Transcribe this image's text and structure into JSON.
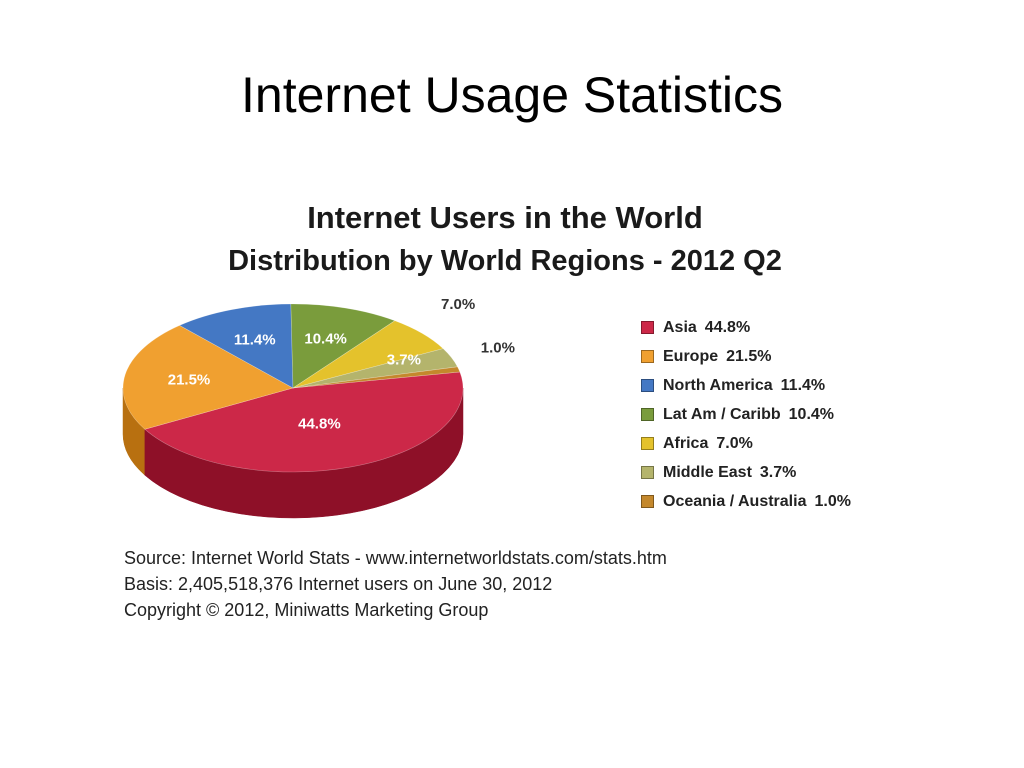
{
  "slide": {
    "title": "Internet Usage Statistics"
  },
  "chart_data": {
    "type": "pie",
    "title": "Internet Users in the World",
    "subtitle": "Distribution by World Regions - 2012 Q2",
    "unit": "%",
    "slices": [
      {
        "label": "Asia",
        "value": 44.8,
        "value_label": "44.8%",
        "color": "#cc2848",
        "side_color": "#8e1028"
      },
      {
        "label": "Europe",
        "value": 21.5,
        "value_label": "21.5%",
        "color": "#f0a030",
        "side_color": "#b87010"
      },
      {
        "label": "North America",
        "value": 11.4,
        "value_label": "11.4%",
        "color": "#4478c4",
        "side_color": "#2c5494"
      },
      {
        "label": "Lat Am / Caribb",
        "value": 10.4,
        "value_label": "10.4%",
        "color": "#7a9c3c",
        "side_color": "#566f24"
      },
      {
        "label": "Africa",
        "value": 7.0,
        "value_label": "7.0%",
        "color": "#e4c22c",
        "side_color": "#b49410"
      },
      {
        "label": "Middle East",
        "value": 3.7,
        "value_label": "3.7%",
        "color": "#b4b46c",
        "side_color": "#84844a"
      },
      {
        "label": "Oceania / Australia",
        "value": 1.0,
        "value_label": "1.0%",
        "color": "#c4882c",
        "side_color": "#94621a"
      }
    ],
    "legend_position": "right"
  },
  "source_notes": [
    "Source: Internet World Stats -  www.internetworldstats.com/stats.htm",
    "Basis: 2,405,518,376 Internet users on June 30, 2012",
    "Copyright © 2012, Miniwatts Marketing Group"
  ]
}
